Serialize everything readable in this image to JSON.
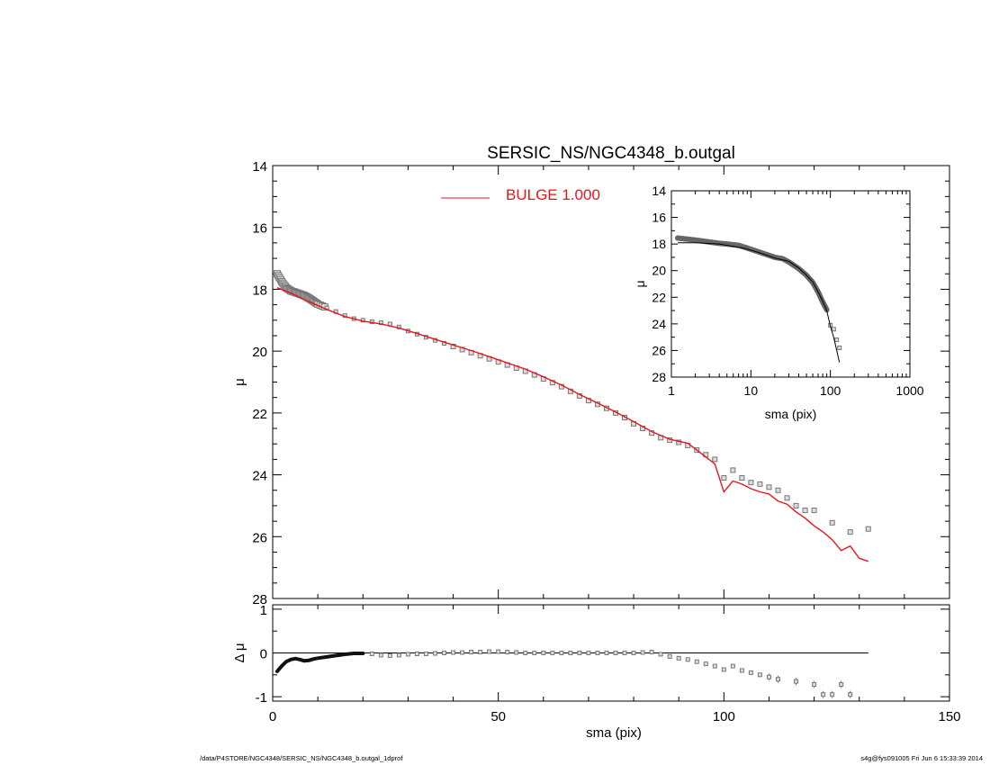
{
  "title": "SERSIC_NS/NGC4348_b.outgal",
  "footer": {
    "left": "/data/P4STORE/NGC4348/SERSIC_NS/NGC4348_b.outgal_1dprof",
    "right": "s4g@fys091005  Fri Jun  6 15:33:39 2014"
  },
  "colors": {
    "model": "#e8141b",
    "data": "#777777",
    "axes": "#000000"
  },
  "chart_data": [
    {
      "id": "main",
      "type": "scatter",
      "title": "SERSIC_NS/NGC4348_b.outgal",
      "xlabel": "",
      "ylabel": "μ",
      "xlim": [
        0,
        150
      ],
      "ylim": [
        28,
        14
      ],
      "y_inverted": true,
      "yticks": [
        "14",
        "16",
        "18",
        "20",
        "22",
        "24",
        "26",
        "28"
      ],
      "legend": {
        "placement": "top-center",
        "entries": [
          {
            "label": "BULGE  1.000",
            "color": "#e8141b"
          }
        ]
      },
      "series": [
        {
          "name": "",
          "kind": "points",
          "points": [
            [
              1,
              17.5
            ],
            [
              2,
              17.75
            ],
            [
              3,
              17.95
            ],
            [
              4,
              18.05
            ],
            [
              5,
              18.1
            ],
            [
              6,
              18.15
            ],
            [
              7,
              18.2
            ],
            [
              8,
              18.28
            ],
            [
              9,
              18.38
            ],
            [
              10,
              18.48
            ],
            [
              12,
              18.6
            ],
            [
              14,
              18.72
            ],
            [
              16,
              18.85
            ],
            [
              18,
              18.95
            ],
            [
              20,
              19.0
            ],
            [
              22,
              19.05
            ],
            [
              24,
              19.08
            ],
            [
              26,
              19.12
            ],
            [
              28,
              19.22
            ],
            [
              30,
              19.35
            ],
            [
              32,
              19.45
            ],
            [
              34,
              19.55
            ],
            [
              36,
              19.65
            ],
            [
              38,
              19.75
            ],
            [
              40,
              19.85
            ],
            [
              42,
              19.95
            ],
            [
              44,
              20.05
            ],
            [
              46,
              20.15
            ],
            [
              48,
              20.25
            ],
            [
              50,
              20.35
            ],
            [
              52,
              20.45
            ],
            [
              54,
              20.55
            ],
            [
              56,
              20.65
            ],
            [
              58,
              20.77
            ],
            [
              60,
              20.9
            ],
            [
              62,
              21.02
            ],
            [
              64,
              21.15
            ],
            [
              66,
              21.3
            ],
            [
              68,
              21.45
            ],
            [
              70,
              21.6
            ],
            [
              72,
              21.72
            ],
            [
              74,
              21.85
            ],
            [
              76,
              22.0
            ],
            [
              78,
              22.15
            ],
            [
              80,
              22.35
            ],
            [
              82,
              22.5
            ],
            [
              84,
              22.65
            ],
            [
              86,
              22.8
            ],
            [
              88,
              22.88
            ],
            [
              90,
              22.95
            ],
            [
              92,
              23.05
            ],
            [
              94,
              23.2
            ],
            [
              96,
              23.35
            ],
            [
              98,
              23.5
            ],
            [
              100,
              24.1
            ],
            [
              102,
              23.85
            ],
            [
              104,
              24.1
            ],
            [
              106,
              24.25
            ],
            [
              108,
              24.3
            ],
            [
              110,
              24.4
            ],
            [
              112,
              24.5
            ],
            [
              114,
              24.75
            ],
            [
              116,
              25.0
            ],
            [
              118,
              25.15
            ],
            [
              120,
              25.15
            ],
            [
              124,
              25.55
            ],
            [
              128,
              25.85
            ],
            [
              132,
              25.75
            ]
          ]
        },
        {
          "name": "BULGE  1.000",
          "kind": "line",
          "points": [
            [
              1,
              17.95
            ],
            [
              4,
              18.12
            ],
            [
              8,
              18.4
            ],
            [
              12,
              18.65
            ],
            [
              16,
              18.88
            ],
            [
              20,
              19.03
            ],
            [
              24,
              19.12
            ],
            [
              28,
              19.25
            ],
            [
              32,
              19.43
            ],
            [
              36,
              19.62
            ],
            [
              40,
              19.8
            ],
            [
              44,
              19.98
            ],
            [
              48,
              20.18
            ],
            [
              52,
              20.38
            ],
            [
              56,
              20.58
            ],
            [
              60,
              20.83
            ],
            [
              64,
              21.1
            ],
            [
              68,
              21.4
            ],
            [
              72,
              21.68
            ],
            [
              76,
              21.97
            ],
            [
              80,
              22.28
            ],
            [
              84,
              22.6
            ],
            [
              88,
              22.85
            ],
            [
              92,
              22.98
            ],
            [
              94,
              23.2
            ],
            [
              98,
              23.65
            ],
            [
              100,
              24.55
            ],
            [
              102,
              24.2
            ],
            [
              104,
              24.3
            ],
            [
              106,
              24.45
            ],
            [
              108,
              24.55
            ],
            [
              110,
              24.62
            ],
            [
              112,
              24.85
            ],
            [
              114,
              24.95
            ],
            [
              116,
              25.2
            ],
            [
              118,
              25.4
            ],
            [
              120,
              25.65
            ],
            [
              122,
              25.85
            ],
            [
              124,
              26.1
            ],
            [
              126,
              26.45
            ],
            [
              128,
              26.3
            ],
            [
              130,
              26.7
            ],
            [
              132,
              26.8
            ]
          ]
        }
      ]
    },
    {
      "id": "inset",
      "type": "scatter",
      "xlabel": "sma (pix)",
      "ylabel": "μ",
      "xscale": "log",
      "xlim": [
        1,
        1000
      ],
      "ylim": [
        28,
        14
      ],
      "y_inverted": true,
      "xticks": [
        "1",
        "10",
        "100",
        "1000"
      ],
      "yticks": [
        "14",
        "16",
        "18",
        "20",
        "22",
        "24",
        "26",
        "28"
      ],
      "series": [
        {
          "name": "",
          "kind": "points",
          "points": [
            [
              1.2,
              17.55
            ],
            [
              1.5,
              17.62
            ],
            [
              2,
              17.7
            ],
            [
              3,
              17.85
            ],
            [
              4,
              17.95
            ],
            [
              5,
              18.0
            ],
            [
              7,
              18.1
            ],
            [
              9,
              18.3
            ],
            [
              12,
              18.55
            ],
            [
              15,
              18.75
            ],
            [
              20,
              19.0
            ],
            [
              25,
              19.1
            ],
            [
              30,
              19.35
            ],
            [
              40,
              19.85
            ],
            [
              50,
              20.35
            ],
            [
              60,
              20.9
            ],
            [
              70,
              21.6
            ],
            [
              80,
              22.35
            ],
            [
              90,
              22.95
            ],
            [
              100,
              24.1
            ],
            [
              110,
              24.4
            ],
            [
              120,
              25.2
            ],
            [
              130,
              25.8
            ]
          ]
        },
        {
          "name": "",
          "kind": "line",
          "points": [
            [
              1.2,
              17.9
            ],
            [
              2,
              17.9
            ],
            [
              4,
              18.0
            ],
            [
              8,
              18.3
            ],
            [
              12,
              18.6
            ],
            [
              20,
              19.05
            ],
            [
              30,
              19.3
            ],
            [
              40,
              19.8
            ],
            [
              50,
              20.35
            ],
            [
              60,
              20.85
            ],
            [
              70,
              21.6
            ],
            [
              80,
              22.3
            ],
            [
              90,
              23.0
            ],
            [
              100,
              24.2
            ],
            [
              110,
              25.0
            ],
            [
              120,
              26.0
            ],
            [
              130,
              26.9
            ]
          ]
        }
      ]
    },
    {
      "id": "residual",
      "type": "scatter",
      "xlabel": "sma (pix)",
      "ylabel": "Δ μ",
      "xlim": [
        0,
        150
      ],
      "ylim": [
        -1.1,
        1.1
      ],
      "xticks": [
        "0",
        "50",
        "100",
        "150"
      ],
      "yticks": [
        "1",
        "0",
        "-1"
      ],
      "zero_line_to": 132,
      "series": [
        {
          "name": "",
          "kind": "points",
          "points": [
            [
              1,
              -0.42
            ],
            [
              2,
              -0.3
            ],
            [
              3,
              -0.2
            ],
            [
              4,
              -0.15
            ],
            [
              5,
              -0.13
            ],
            [
              6,
              -0.15
            ],
            [
              7,
              -0.18
            ],
            [
              8,
              -0.17
            ],
            [
              9,
              -0.14
            ],
            [
              10,
              -0.12
            ],
            [
              12,
              -0.09
            ],
            [
              14,
              -0.06
            ],
            [
              16,
              -0.03
            ],
            [
              18,
              -0.01
            ],
            [
              20,
              -0.01
            ],
            [
              22,
              -0.02
            ],
            [
              24,
              -0.05
            ],
            [
              26,
              -0.06
            ],
            [
              28,
              -0.05
            ],
            [
              30,
              -0.03
            ],
            [
              32,
              -0.02
            ],
            [
              34,
              -0.02
            ],
            [
              36,
              -0.01
            ],
            [
              38,
              0.0
            ],
            [
              40,
              0.01
            ],
            [
              42,
              0.01
            ],
            [
              44,
              0.02
            ],
            [
              46,
              0.02
            ],
            [
              48,
              0.03
            ],
            [
              50,
              0.03
            ],
            [
              52,
              0.02
            ],
            [
              54,
              0.01
            ],
            [
              56,
              0.0
            ],
            [
              58,
              0.0
            ],
            [
              60,
              0.0
            ],
            [
              62,
              0.0
            ],
            [
              64,
              0.0
            ],
            [
              66,
              0.0
            ],
            [
              68,
              0.0
            ],
            [
              70,
              0.0
            ],
            [
              72,
              0.0
            ],
            [
              74,
              0.0
            ],
            [
              76,
              0.0
            ],
            [
              78,
              0.0
            ],
            [
              80,
              0.0
            ],
            [
              82,
              0.01
            ],
            [
              84,
              0.02
            ],
            [
              86,
              -0.03
            ],
            [
              88,
              -0.08
            ],
            [
              90,
              -0.12
            ],
            [
              92,
              -0.15
            ],
            [
              94,
              -0.2
            ],
            [
              96,
              -0.25
            ],
            [
              98,
              -0.3
            ],
            [
              100,
              -0.38
            ],
            [
              102,
              -0.3
            ],
            [
              104,
              -0.4
            ],
            [
              106,
              -0.45
            ],
            [
              108,
              -0.5
            ],
            [
              110,
              -0.55
            ],
            [
              112,
              -0.6
            ],
            [
              116,
              -0.65
            ],
            [
              120,
              -0.72
            ],
            [
              122,
              -0.95
            ],
            [
              124,
              -0.95
            ],
            [
              126,
              -0.72
            ],
            [
              128,
              -0.95
            ]
          ]
        }
      ]
    }
  ]
}
